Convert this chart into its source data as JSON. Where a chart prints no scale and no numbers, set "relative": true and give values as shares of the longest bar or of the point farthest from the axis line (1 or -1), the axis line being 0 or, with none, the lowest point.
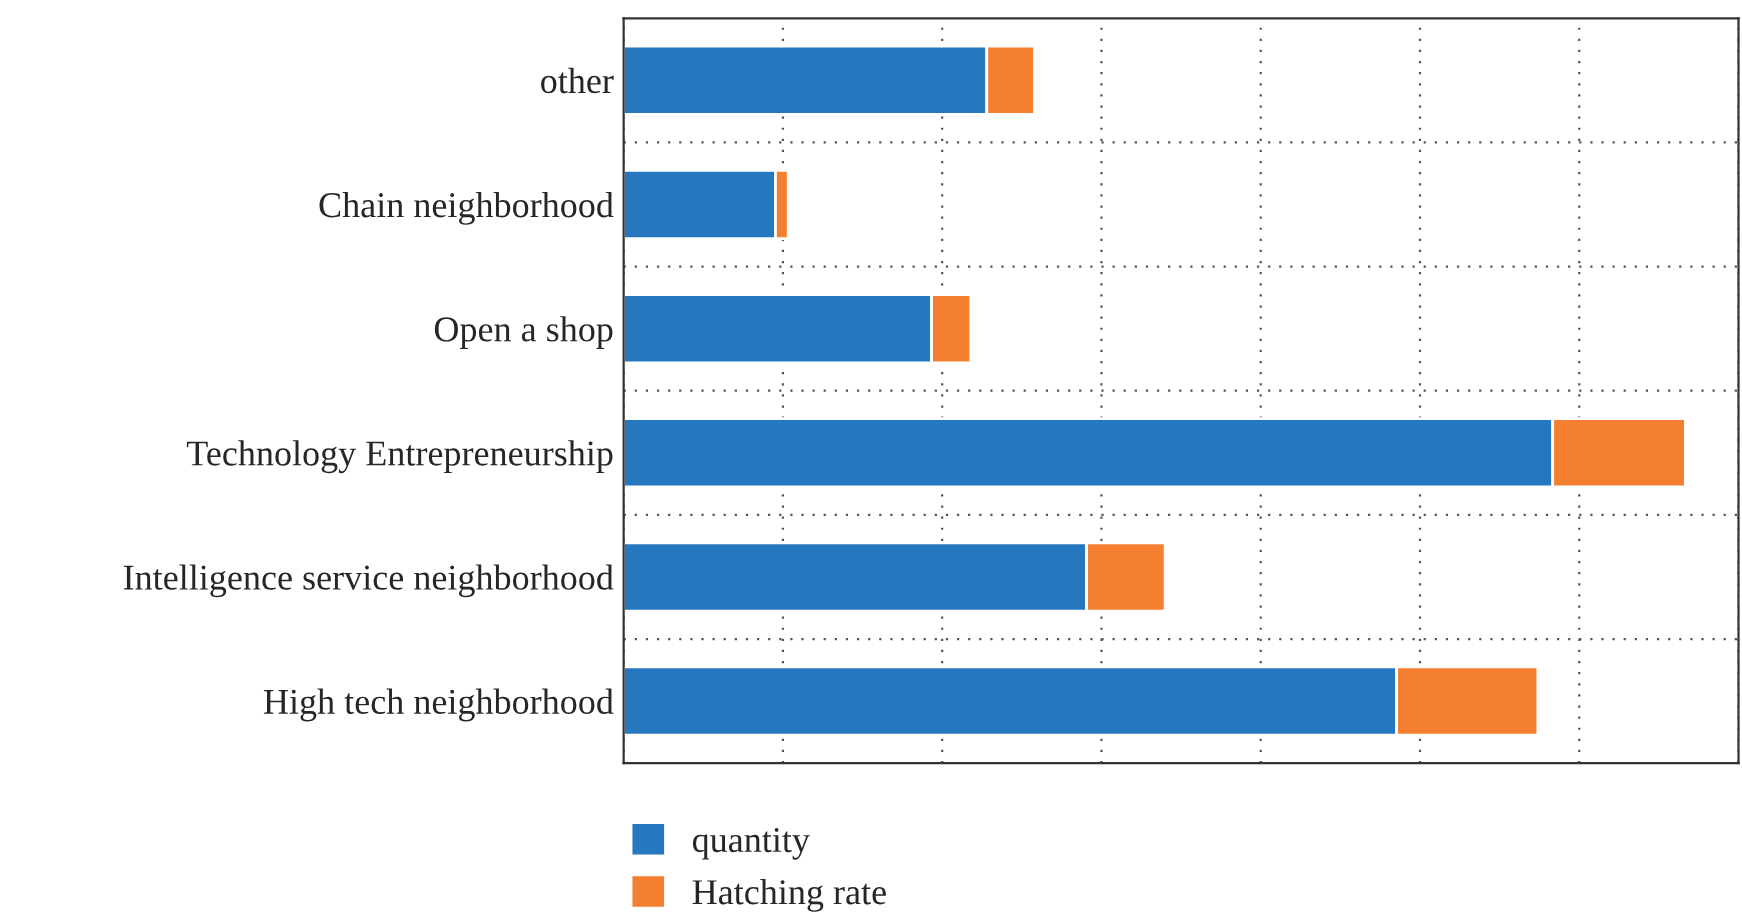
{
  "chart_data": {
    "type": "bar",
    "orientation": "horizontal",
    "stacked": true,
    "relative": true,
    "grid": true,
    "legend": "bottom left",
    "categories": [
      "other",
      "Chain neighborhood",
      "Open a shop",
      "Technology Entrepreneurship",
      "Intelligence service neighborhood",
      "High tech neighborhood"
    ],
    "series": [
      {
        "name": "quantity",
        "color": "#2577c0",
        "values": [
          0.342,
          0.143,
          0.29,
          0.875,
          0.436,
          0.728
        ]
      },
      {
        "name": "Hatching rate",
        "color": "#f47f30",
        "values": [
          0.045,
          0.012,
          0.037,
          0.125,
          0.074,
          0.133
        ]
      }
    ]
  }
}
